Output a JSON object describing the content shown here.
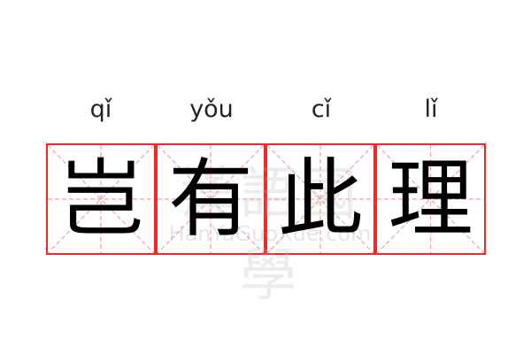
{
  "colors": {
    "grid_border": "#ee2b2b",
    "grid_guides": "#f4a0a0",
    "text": "#000000"
  },
  "characters": [
    {
      "pinyin": "qǐ",
      "hanzi": "岂"
    },
    {
      "pinyin": "yǒu",
      "hanzi": "有"
    },
    {
      "pinyin": "cǐ",
      "hanzi": "此"
    },
    {
      "pinyin": "lǐ",
      "hanzi": "理"
    }
  ],
  "watermark": {
    "text": "漢語國學",
    "site": "HanYuGuoXue.com"
  }
}
